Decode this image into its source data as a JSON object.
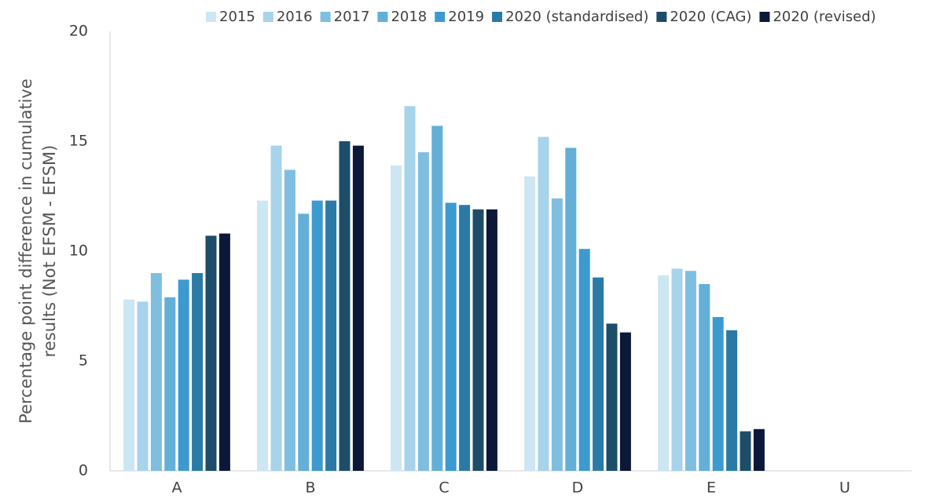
{
  "chart_data": {
    "type": "bar",
    "y_label": [
      "Percentage point difference in cumulative",
      "results (Not EFSM - EFSM)"
    ],
    "categories": [
      "A",
      "B",
      "C",
      "D",
      "E",
      "U"
    ],
    "series": [
      {
        "name": "2015",
        "color": "#cde6f3",
        "values": [
          7.8,
          12.3,
          13.9,
          13.4,
          8.9,
          null
        ]
      },
      {
        "name": "2016",
        "color": "#a7d3eb",
        "values": [
          7.7,
          14.8,
          16.6,
          15.2,
          9.2,
          null
        ]
      },
      {
        "name": "2017",
        "color": "#80bee0",
        "values": [
          9.0,
          13.7,
          14.5,
          12.4,
          9.1,
          null
        ]
      },
      {
        "name": "2018",
        "color": "#63afd8",
        "values": [
          7.9,
          11.7,
          15.7,
          14.7,
          8.5,
          null
        ]
      },
      {
        "name": "2019",
        "color": "#3c9acf",
        "values": [
          8.7,
          12.3,
          12.2,
          10.1,
          7.0,
          null
        ]
      },
      {
        "name": "2020 (standardised)",
        "color": "#2a7aa5",
        "values": [
          9.0,
          12.3,
          12.1,
          8.8,
          6.4,
          null
        ]
      },
      {
        "name": "2020 (CAG)",
        "color": "#1d4d68",
        "values": [
          10.7,
          15.0,
          11.9,
          6.7,
          1.8,
          null
        ]
      },
      {
        "name": "2020 (revised)",
        "color": "#0b1838",
        "values": [
          10.8,
          14.8,
          11.9,
          6.3,
          1.9,
          null
        ]
      }
    ],
    "ylim": [
      0,
      20
    ],
    "yticks": [
      0,
      5,
      10,
      15,
      20
    ],
    "grid": false
  }
}
